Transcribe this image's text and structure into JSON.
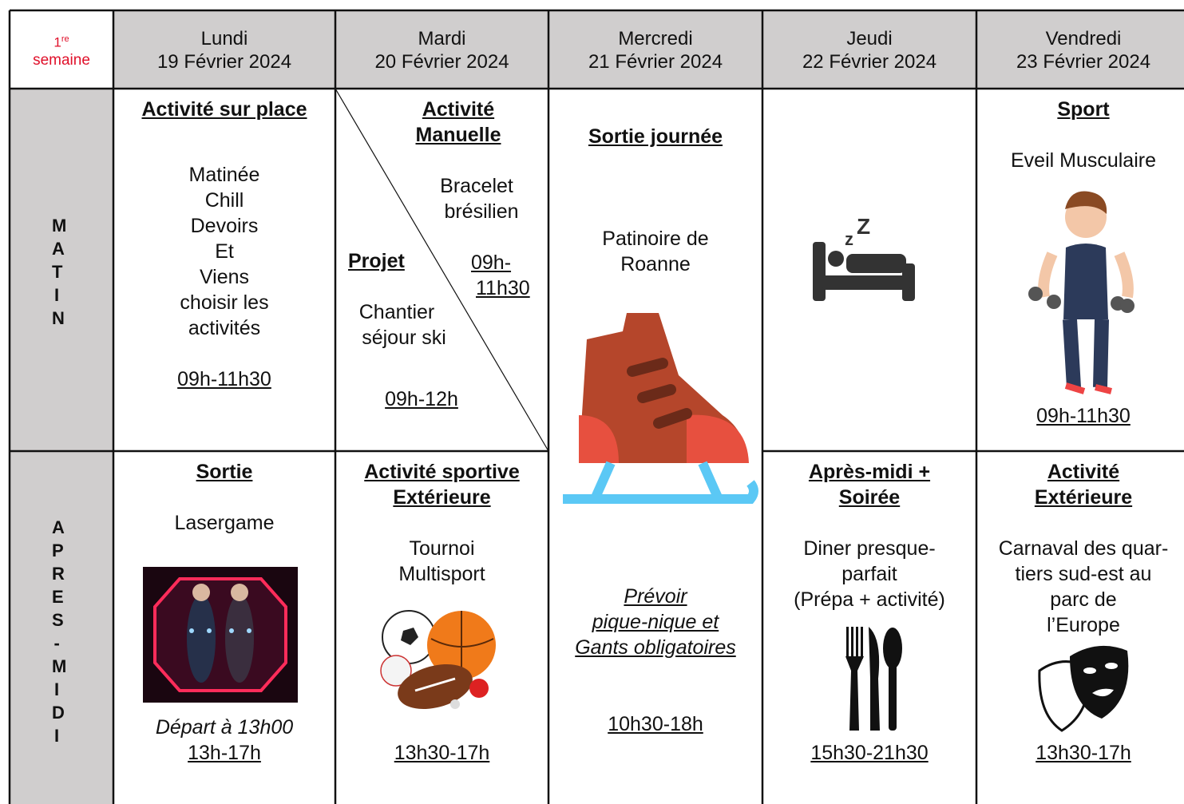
{
  "header": {
    "week": {
      "number": "1",
      "suffix": "re",
      "label": "semaine"
    },
    "days": [
      {
        "name": "Lundi",
        "date": "19 Février 2024"
      },
      {
        "name": "Mardi",
        "date": "20 Février 2024"
      },
      {
        "name": "Mercredi",
        "date": "21 Février 2024"
      },
      {
        "name": "Jeudi",
        "date": "22 Février 2024"
      },
      {
        "name": "Vendredi",
        "date": "23 Février 2024"
      }
    ]
  },
  "periods": [
    "MATIN",
    "APRES-MIDI"
  ],
  "cells": {
    "mon_am": {
      "title": "Activité sur place",
      "lines": [
        "Matinée",
        "Chill",
        "Devoirs",
        "Et",
        "Viens",
        "choisir les",
        "activités"
      ],
      "time": "09h-11h30"
    },
    "tue_am": {
      "manual": {
        "title": [
          "Activité",
          "Manuelle"
        ],
        "lines": [
          "Bracelet",
          "brésilien"
        ],
        "time": [
          "09h-",
          "11h30"
        ]
      },
      "project": {
        "title": "Projet",
        "lines": [
          "Chantier",
          "séjour ski"
        ],
        "time": "09h-12h"
      }
    },
    "wed_day": {
      "title": "Sortie journée",
      "lines": [
        "Patinoire de",
        "Roanne"
      ],
      "note": [
        "Prévoir",
        "pique-nique et",
        "Gants obligatoires"
      ],
      "time": "10h30-18h"
    },
    "fri_am": {
      "title": "Sport",
      "lines": [
        "Eveil Musculaire"
      ],
      "time": "09h-11h30"
    },
    "mon_pm": {
      "title": "Sortie",
      "lines": [
        "Lasergame"
      ],
      "note": "Départ à 13h00",
      "time": "13h-17h"
    },
    "tue_pm": {
      "title": [
        "Activité sportive",
        "Extérieure"
      ],
      "lines": [
        "Tournoi",
        "Multisport"
      ],
      "time": "13h30-17h"
    },
    "thu_pm": {
      "title": [
        "Après-midi +",
        "Soirée"
      ],
      "lines": [
        "Diner presque-",
        "parfait",
        "(Prépa + activité)"
      ],
      "time": "15h30-21h30"
    },
    "fri_pm": {
      "title": [
        "Activité",
        "Extérieure"
      ],
      "lines": [
        "Carnaval des quar-",
        "tiers sud-est au",
        "parc de",
        "l’Europe"
      ],
      "time": "13h30-17h"
    }
  }
}
